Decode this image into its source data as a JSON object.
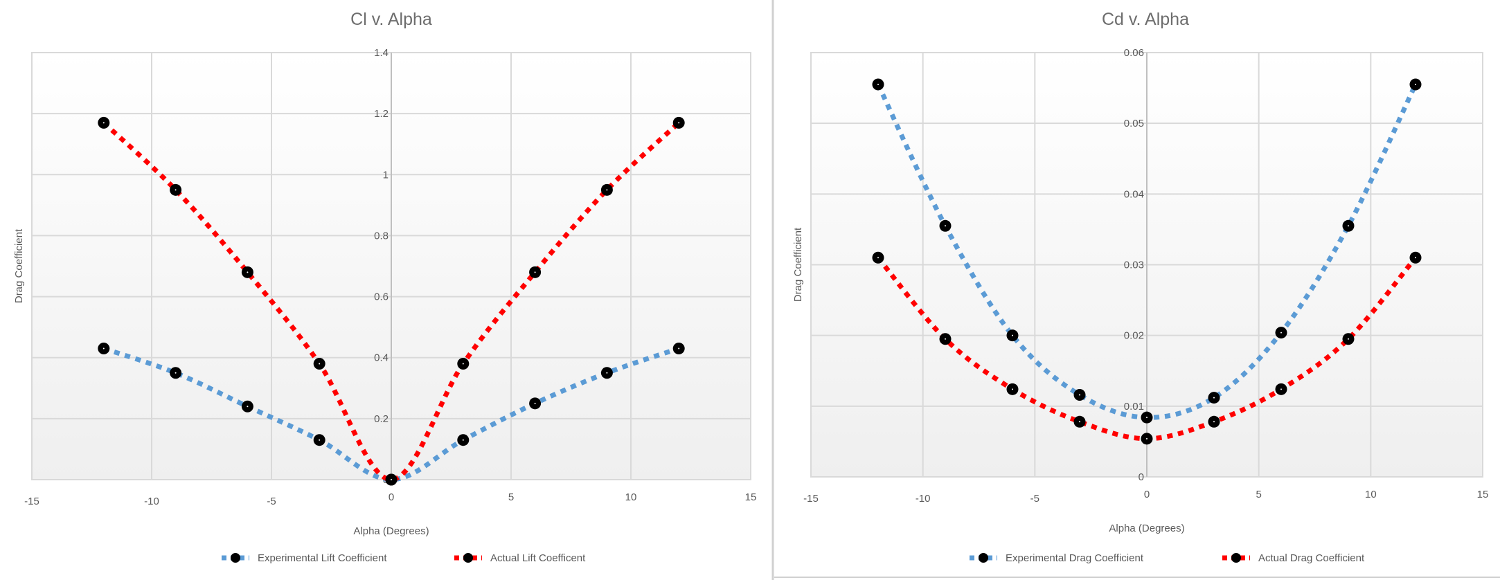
{
  "chart_data": [
    {
      "type": "scatter",
      "title": "Cl v. Alpha",
      "xlabel": "Alpha (Degrees)",
      "ylabel": "Drag Coefficient",
      "xlim": [
        -15,
        15
      ],
      "ylim": [
        0,
        1.4
      ],
      "xticks": [
        "-15",
        "-10",
        "-5",
        "0",
        "5",
        "10",
        "15"
      ],
      "yticks": [
        "0",
        "0.2",
        "0.4",
        "0.6",
        "0.8",
        "1",
        "1.2",
        "1.4"
      ],
      "grid": true,
      "legend": "bottom",
      "x": [
        -12,
        -9,
        -6,
        -3,
        0,
        3,
        6,
        9,
        12
      ],
      "series": [
        {
          "name": "Experimental Lift Coefficient",
          "color": "#5b9bd5",
          "values": [
            0.43,
            0.35,
            0.24,
            0.13,
            0,
            0.13,
            0.25,
            0.35,
            0.43
          ]
        },
        {
          "name": "Actual Lift Coefficent",
          "color": "#ff0000",
          "values": [
            1.17,
            0.95,
            0.68,
            0.38,
            0,
            0.38,
            0.68,
            0.95,
            1.17
          ]
        }
      ]
    },
    {
      "type": "scatter",
      "title": "Cd v. Alpha",
      "xlabel": "Alpha (Degrees)",
      "ylabel": "Drag Coefficient",
      "xlim": [
        -15,
        15
      ],
      "ylim": [
        0,
        0.06
      ],
      "xticks": [
        "-15",
        "-10",
        "-5",
        "0",
        "5",
        "10",
        "15"
      ],
      "yticks": [
        "0",
        "0.01",
        "0.02",
        "0.03",
        "0.04",
        "0.05",
        "0.06"
      ],
      "grid": true,
      "legend": "bottom",
      "x": [
        -12,
        -9,
        -6,
        -3,
        0,
        3,
        6,
        9,
        12
      ],
      "series": [
        {
          "name": "Experimental Drag Coefficient",
          "color": "#5b9bd5",
          "values": [
            0.0555,
            0.0355,
            0.02,
            0.0116,
            0.0084,
            0.0112,
            0.0204,
            0.0355,
            0.0555
          ]
        },
        {
          "name": "Actual Drag Coefficient",
          "color": "#ff0000",
          "values": [
            0.031,
            0.0195,
            0.0124,
            0.0078,
            0.0054,
            0.0078,
            0.0124,
            0.0195,
            0.031
          ]
        }
      ]
    }
  ]
}
